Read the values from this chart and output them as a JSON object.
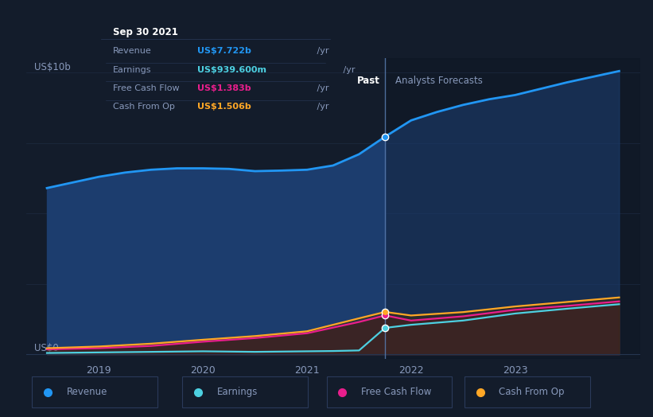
{
  "bg_color": "#131c2b",
  "plot_bg_color": "#131c2b",
  "divider_x": 2021.75,
  "past_label": "Past",
  "forecast_label": "Analysts Forecasts",
  "ylabel_top": "US$10b",
  "ylabel_bottom": "US$0",
  "x_ticks": [
    2019,
    2020,
    2021,
    2022,
    2023
  ],
  "x_min": 2018.3,
  "x_max": 2024.2,
  "y_min": -0.15,
  "y_max": 10.5,
  "revenue": {
    "x": [
      2018.5,
      2018.75,
      2019.0,
      2019.25,
      2019.5,
      2019.75,
      2020.0,
      2020.25,
      2020.5,
      2020.75,
      2021.0,
      2021.25,
      2021.5,
      2021.75,
      2022.0,
      2022.25,
      2022.5,
      2022.75,
      2023.0,
      2023.5,
      2024.0
    ],
    "y": [
      5.9,
      6.1,
      6.3,
      6.45,
      6.55,
      6.6,
      6.6,
      6.58,
      6.5,
      6.52,
      6.55,
      6.7,
      7.1,
      7.722,
      8.3,
      8.6,
      8.85,
      9.05,
      9.2,
      9.65,
      10.05
    ],
    "color": "#2196f3",
    "fill_color_past": "#1a3a6e",
    "fill_color_fore": "#162d58",
    "label": "Revenue",
    "marker_x": 2021.75,
    "marker_y": 7.722
  },
  "earnings": {
    "x": [
      2018.5,
      2019.0,
      2019.5,
      2020.0,
      2020.5,
      2021.0,
      2021.25,
      2021.5,
      2021.75,
      2022.0,
      2022.5,
      2023.0,
      2023.5,
      2024.0
    ],
    "y": [
      0.05,
      0.07,
      0.09,
      0.11,
      0.09,
      0.11,
      0.12,
      0.14,
      0.94,
      1.05,
      1.2,
      1.45,
      1.62,
      1.78
    ],
    "color": "#4dd0e1",
    "label": "Earnings",
    "marker_x": 2021.75,
    "marker_y": 0.94
  },
  "free_cash_flow": {
    "x": [
      2018.5,
      2019.0,
      2019.5,
      2020.0,
      2020.5,
      2021.0,
      2021.25,
      2021.5,
      2021.75,
      2022.0,
      2022.5,
      2023.0,
      2023.5,
      2024.0
    ],
    "y": [
      0.18,
      0.22,
      0.3,
      0.45,
      0.58,
      0.75,
      0.95,
      1.15,
      1.383,
      1.2,
      1.35,
      1.58,
      1.72,
      1.88
    ],
    "color": "#e91e8c",
    "label": "Free Cash Flow",
    "marker_x": 2021.75,
    "marker_y": 1.383
  },
  "cash_from_op": {
    "x": [
      2018.5,
      2019.0,
      2019.5,
      2020.0,
      2020.5,
      2021.0,
      2021.25,
      2021.5,
      2021.75,
      2022.0,
      2022.5,
      2023.0,
      2023.5,
      2024.0
    ],
    "y": [
      0.22,
      0.28,
      0.38,
      0.52,
      0.65,
      0.82,
      1.05,
      1.28,
      1.506,
      1.38,
      1.5,
      1.7,
      1.86,
      2.02
    ],
    "color": "#ffa726",
    "label": "Cash From Op",
    "marker_x": 2021.75,
    "marker_y": 1.506
  },
  "tooltip": {
    "title": "Sep 30 2021",
    "rows": [
      {
        "label": "Revenue",
        "value": "US$7.722b",
        "value_color": "#2196f3"
      },
      {
        "label": "Earnings",
        "value": "US$939.600m",
        "value_color": "#4dd0e1"
      },
      {
        "label": "Free Cash Flow",
        "value": "US$1.383b",
        "value_color": "#e91e8c"
      },
      {
        "label": "Cash From Op",
        "value": "US$1.506b",
        "value_color": "#ffa726"
      }
    ],
    "suffix": " /yr"
  },
  "legend_items": [
    {
      "label": "Revenue",
      "color": "#2196f3"
    },
    {
      "label": "Earnings",
      "color": "#4dd0e1"
    },
    {
      "label": "Free Cash Flow",
      "color": "#e91e8c"
    },
    {
      "label": "Cash From Op",
      "color": "#ffa726"
    }
  ],
  "grid_color": "#253550",
  "divider_color": "#5577aa",
  "text_color": "#8899bb",
  "title_color": "#ffffff",
  "tooltip_bg": "#0a1020",
  "tooltip_border": "#2a3a5a"
}
